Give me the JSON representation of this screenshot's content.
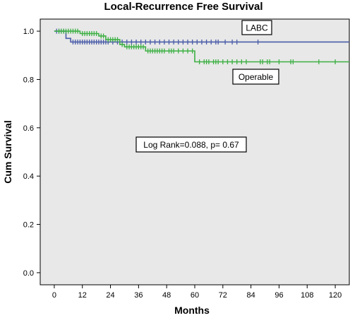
{
  "chart_data": {
    "type": "line",
    "title": "Local-Recurrence Free Survival",
    "xlabel": "Months",
    "ylabel": "Cum Survival",
    "xlim": [
      -6,
      126
    ],
    "ylim": [
      -0.05,
      1.05
    ],
    "x_ticks": [
      0,
      12,
      24,
      36,
      48,
      60,
      72,
      84,
      96,
      108,
      120
    ],
    "y_ticks": [
      0.0,
      0.2,
      0.4,
      0.6,
      0.8,
      1.0
    ],
    "y_tick_labels": [
      "0.0",
      "0.2",
      "0.4",
      "0.6",
      "0.8",
      "1.0"
    ],
    "grid": false,
    "background": "#e8e8e8",
    "series": [
      {
        "name": "LABC",
        "color": "#4a5ca8",
        "steps": [
          [
            0,
            1.0
          ],
          [
            5,
            0.97
          ],
          [
            7,
            0.955
          ],
          [
            126,
            0.955
          ]
        ],
        "censored": [
          1,
          2,
          3,
          4,
          8,
          9,
          10,
          11,
          12,
          13,
          14,
          15,
          16,
          17,
          18,
          19,
          20,
          21,
          22,
          23,
          25,
          27,
          29,
          31,
          33,
          35,
          37,
          39,
          41,
          43,
          45,
          47,
          49,
          51,
          53,
          55,
          57,
          59,
          61,
          63,
          65,
          67,
          69,
          70,
          73,
          76,
          78,
          87
        ]
      },
      {
        "name": "Operable",
        "color": "#3cb043",
        "steps": [
          [
            0,
            1.0
          ],
          [
            11,
            0.99
          ],
          [
            19,
            0.98
          ],
          [
            22,
            0.965
          ],
          [
            28,
            0.945
          ],
          [
            30,
            0.935
          ],
          [
            39,
            0.918
          ],
          [
            60,
            0.873
          ],
          [
            126,
            0.873
          ]
        ],
        "censored": [
          2,
          3,
          4,
          5,
          6,
          7,
          8,
          9,
          10,
          12,
          13,
          14,
          15,
          16,
          17,
          18,
          20,
          21,
          23,
          24,
          25,
          26,
          27,
          29,
          31,
          32,
          33,
          34,
          35,
          36,
          37,
          38,
          40,
          41,
          42,
          43,
          44,
          45,
          46,
          47,
          49,
          50,
          51,
          53,
          55,
          57,
          59,
          62,
          64,
          65,
          66,
          68,
          69,
          70,
          72,
          74,
          76,
          78,
          80,
          82,
          88,
          89,
          91,
          92,
          96,
          101,
          102,
          113,
          120
        ]
      }
    ],
    "annotations": [
      {
        "id": "labc",
        "text": "LABC"
      },
      {
        "id": "operable",
        "text": "Operable"
      },
      {
        "id": "logrank",
        "text": "Log Rank=0.088, p= 0.67"
      }
    ]
  }
}
